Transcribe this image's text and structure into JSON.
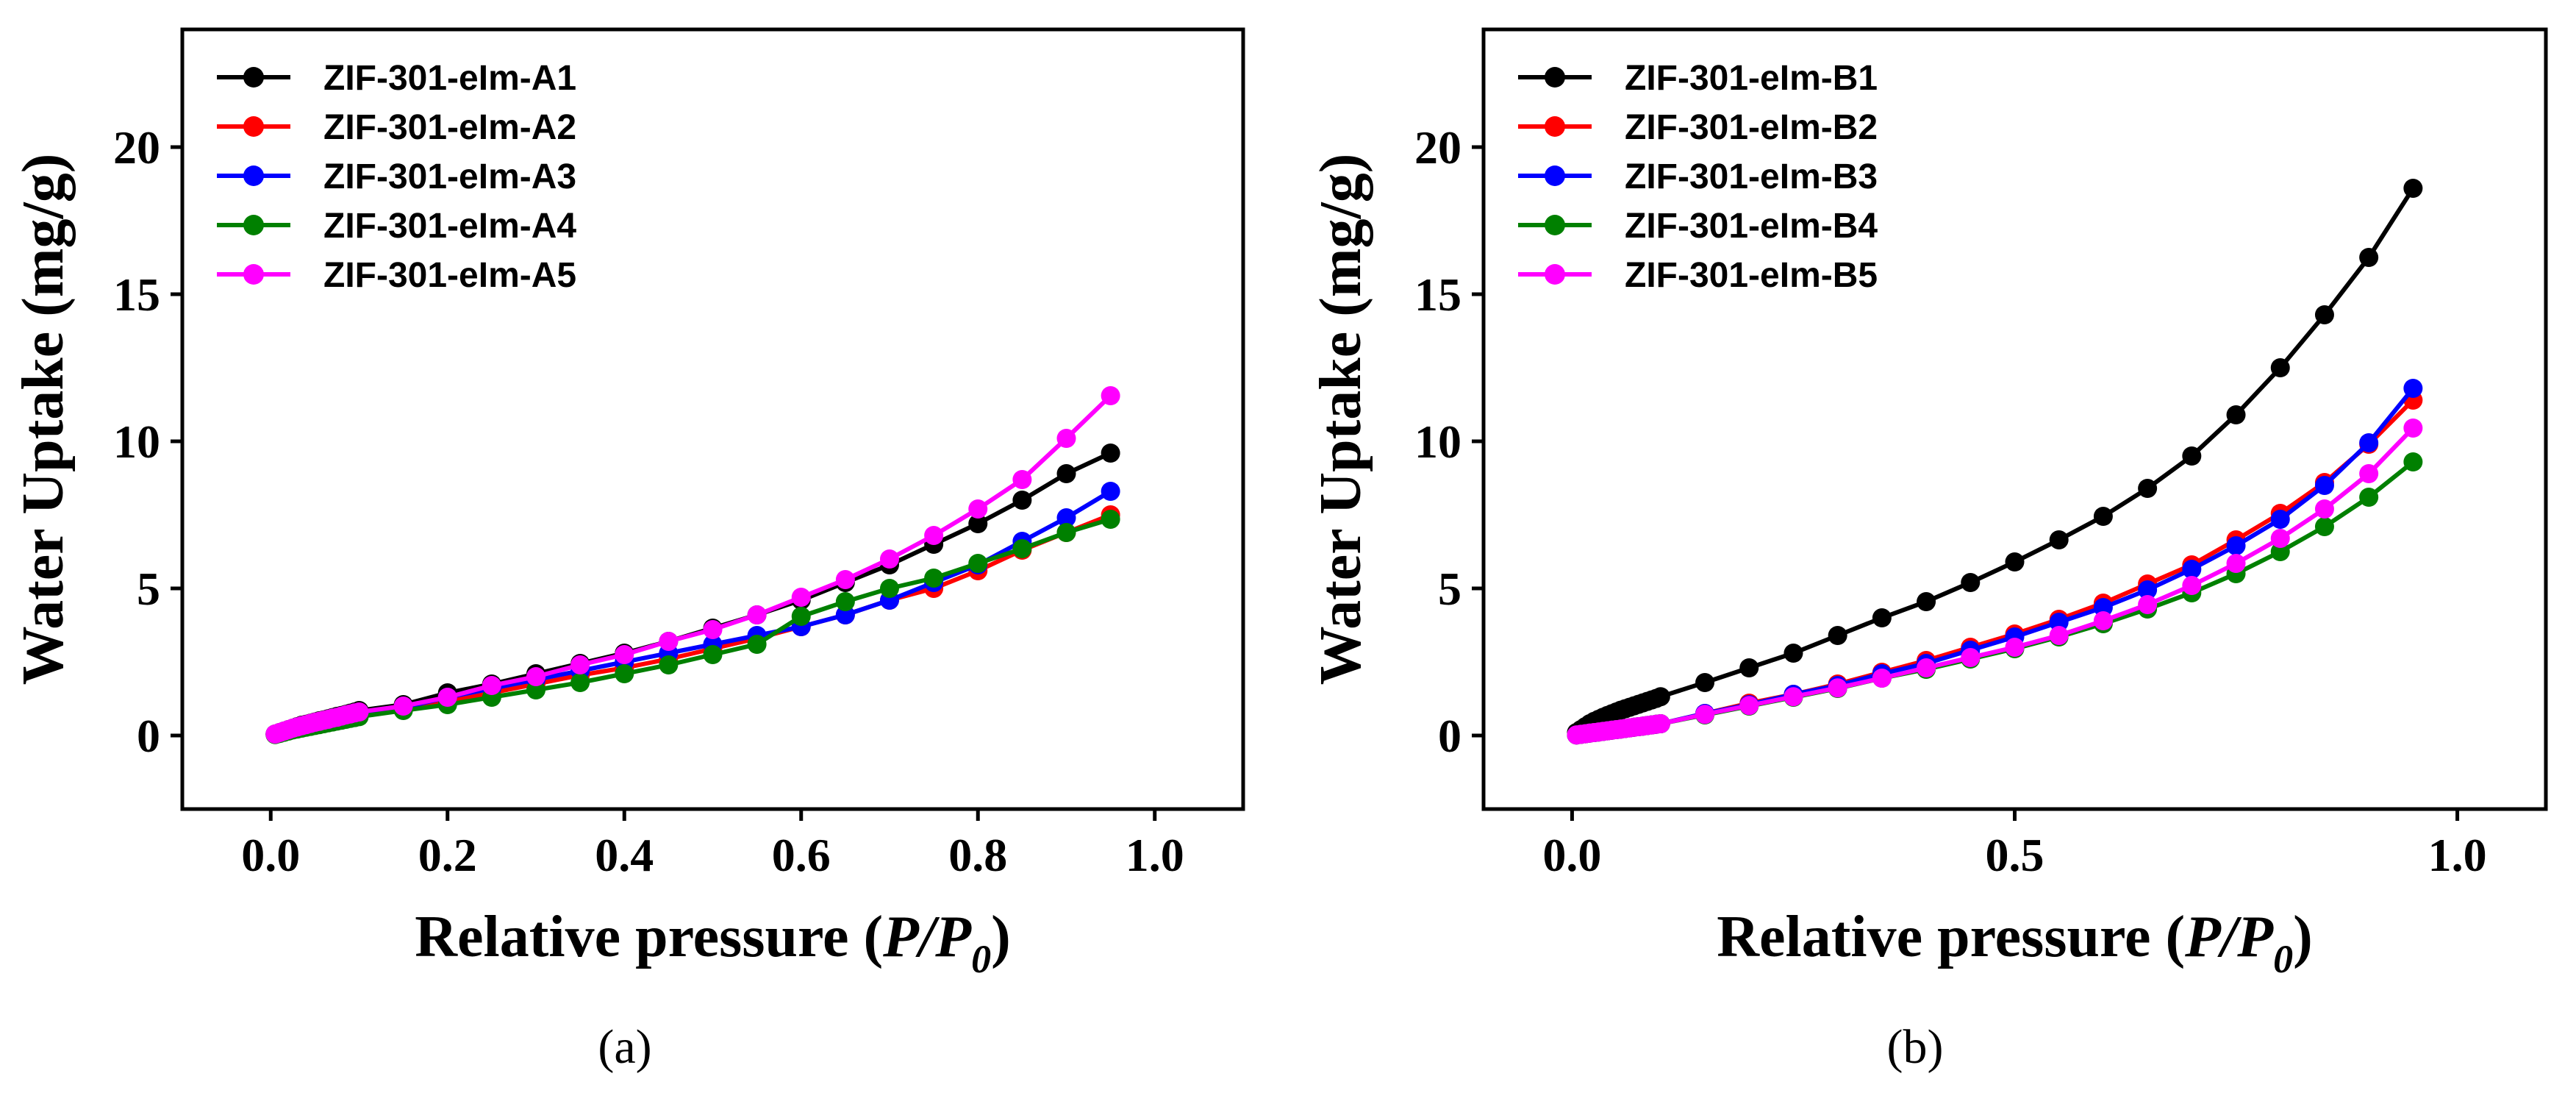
{
  "chart_data": [
    {
      "type": "line",
      "panel_label": "(a)",
      "xlabel": "Relative pressure (P/P0)",
      "xlabel_prefix": "Relative pressure (",
      "xlabel_var_p": "P/P",
      "xlabel_var_sub": "0",
      "xlabel_suffix": ")",
      "ylabel": "Water Uptake (mg/g)",
      "xlim": [
        -0.1,
        1.1
      ],
      "ylim": [
        -2.5,
        24
      ],
      "xticks": [
        "0.0",
        "0.2",
        "0.4",
        "0.6",
        "0.8",
        "1.0"
      ],
      "yticks": [
        "0",
        "5",
        "10",
        "15",
        "20"
      ],
      "x": [
        0.005,
        0.01,
        0.015,
        0.02,
        0.025,
        0.03,
        0.035,
        0.04,
        0.045,
        0.05,
        0.055,
        0.06,
        0.065,
        0.07,
        0.075,
        0.08,
        0.085,
        0.09,
        0.095,
        0.1,
        0.15,
        0.2,
        0.25,
        0.3,
        0.35,
        0.4,
        0.45,
        0.5,
        0.55,
        0.6,
        0.65,
        0.7,
        0.75,
        0.8,
        0.85,
        0.9,
        0.95
      ],
      "series": [
        {
          "name": "ZIF-301-eIm-A1",
          "color": "#000000",
          "values": [
            0.05,
            0.1,
            0.15,
            0.2,
            0.25,
            0.3,
            0.35,
            0.38,
            0.42,
            0.46,
            0.5,
            0.53,
            0.57,
            0.61,
            0.65,
            0.68,
            0.72,
            0.76,
            0.8,
            0.85,
            1.05,
            1.45,
            1.75,
            2.1,
            2.45,
            2.8,
            3.2,
            3.65,
            4.1,
            4.6,
            5.2,
            5.8,
            6.5,
            7.2,
            8.0,
            8.9,
            9.6
          ]
        },
        {
          "name": "ZIF-301-eIm-A2",
          "color": "#ff0000",
          "values": [
            0.04,
            0.08,
            0.12,
            0.16,
            0.2,
            0.24,
            0.28,
            0.31,
            0.34,
            0.37,
            0.4,
            0.43,
            0.46,
            0.49,
            0.52,
            0.55,
            0.58,
            0.61,
            0.64,
            0.68,
            0.9,
            1.15,
            1.45,
            1.75,
            2.05,
            2.3,
            2.6,
            2.95,
            3.3,
            3.7,
            4.1,
            4.6,
            5.0,
            5.6,
            6.3,
            6.9,
            7.5
          ]
        },
        {
          "name": "ZIF-301-eIm-A3",
          "color": "#0000ff",
          "values": [
            0.04,
            0.08,
            0.12,
            0.16,
            0.2,
            0.24,
            0.28,
            0.31,
            0.34,
            0.37,
            0.4,
            0.43,
            0.46,
            0.49,
            0.52,
            0.55,
            0.58,
            0.61,
            0.64,
            0.68,
            0.95,
            1.3,
            1.6,
            1.9,
            2.2,
            2.5,
            2.8,
            3.1,
            3.4,
            3.7,
            4.1,
            4.6,
            5.2,
            5.8,
            6.6,
            7.4,
            8.3
          ]
        },
        {
          "name": "ZIF-301-eIm-A4",
          "color": "#008000",
          "values": [
            0.03,
            0.07,
            0.11,
            0.15,
            0.19,
            0.22,
            0.25,
            0.28,
            0.31,
            0.34,
            0.37,
            0.4,
            0.43,
            0.46,
            0.49,
            0.52,
            0.55,
            0.58,
            0.61,
            0.64,
            0.85,
            1.05,
            1.3,
            1.55,
            1.8,
            2.1,
            2.4,
            2.75,
            3.1,
            4.05,
            4.55,
            5.0,
            5.35,
            5.85,
            6.35,
            6.9,
            7.35
          ]
        },
        {
          "name": "ZIF-301-eIm-A5",
          "color": "#ff00ff",
          "values": [
            0.05,
            0.1,
            0.15,
            0.2,
            0.25,
            0.29,
            0.33,
            0.37,
            0.41,
            0.45,
            0.48,
            0.52,
            0.55,
            0.59,
            0.62,
            0.66,
            0.7,
            0.73,
            0.77,
            0.8,
            1.0,
            1.3,
            1.7,
            2.0,
            2.4,
            2.75,
            3.2,
            3.6,
            4.1,
            4.7,
            5.3,
            6.0,
            6.8,
            7.7,
            8.7,
            10.1,
            11.55
          ]
        }
      ]
    },
    {
      "type": "line",
      "panel_label": "(b)",
      "xlabel": "Relative pressure (P/P0)",
      "xlabel_prefix": "Relative pressure (",
      "xlabel_var_p": "P/P",
      "xlabel_var_sub": "0",
      "xlabel_suffix": ")",
      "ylabel": "Water Uptake (mg/g)",
      "xlim": [
        -0.1,
        1.1
      ],
      "ylim": [
        -2.5,
        24
      ],
      "xticks": [
        "0.0",
        "0.5",
        "1.0"
      ],
      "yticks": [
        "0",
        "5",
        "10",
        "15",
        "20"
      ],
      "x": [
        0.005,
        0.01,
        0.015,
        0.02,
        0.025,
        0.03,
        0.035,
        0.04,
        0.045,
        0.05,
        0.055,
        0.06,
        0.065,
        0.07,
        0.075,
        0.08,
        0.085,
        0.09,
        0.095,
        0.1,
        0.15,
        0.2,
        0.25,
        0.3,
        0.35,
        0.4,
        0.45,
        0.5,
        0.55,
        0.6,
        0.65,
        0.7,
        0.75,
        0.8,
        0.85,
        0.9,
        0.95
      ],
      "series": [
        {
          "name": "ZIF-301-eIm-B1",
          "color": "#000000",
          "values": [
            0.1,
            0.2,
            0.3,
            0.4,
            0.48,
            0.55,
            0.62,
            0.68,
            0.74,
            0.8,
            0.86,
            0.91,
            0.96,
            1.01,
            1.06,
            1.11,
            1.16,
            1.21,
            1.26,
            1.32,
            1.8,
            2.3,
            2.8,
            3.4,
            4.0,
            4.55,
            5.2,
            5.9,
            6.65,
            7.45,
            8.4,
            9.5,
            10.9,
            12.5,
            14.3,
            16.25,
            18.6
          ]
        },
        {
          "name": "ZIF-301-eIm-B2",
          "color": "#ff0000",
          "values": [
            0.02,
            0.04,
            0.06,
            0.08,
            0.1,
            0.12,
            0.14,
            0.16,
            0.18,
            0.2,
            0.22,
            0.24,
            0.26,
            0.28,
            0.3,
            0.32,
            0.34,
            0.36,
            0.38,
            0.4,
            0.75,
            1.1,
            1.4,
            1.75,
            2.15,
            2.55,
            3.0,
            3.45,
            3.95,
            4.5,
            5.15,
            5.8,
            6.65,
            7.55,
            8.6,
            9.9,
            11.4
          ]
        },
        {
          "name": "ZIF-301-eIm-B3",
          "color": "#0000ff",
          "values": [
            0.02,
            0.04,
            0.06,
            0.08,
            0.1,
            0.12,
            0.14,
            0.16,
            0.18,
            0.2,
            0.22,
            0.24,
            0.26,
            0.28,
            0.3,
            0.32,
            0.34,
            0.36,
            0.38,
            0.4,
            0.75,
            1.05,
            1.4,
            1.7,
            2.1,
            2.45,
            2.9,
            3.35,
            3.85,
            4.35,
            4.95,
            5.65,
            6.45,
            7.35,
            8.5,
            9.95,
            11.8
          ]
        },
        {
          "name": "ZIF-301-eIm-B4",
          "color": "#008000",
          "values": [
            0.02,
            0.04,
            0.06,
            0.08,
            0.1,
            0.12,
            0.14,
            0.16,
            0.18,
            0.2,
            0.22,
            0.24,
            0.26,
            0.28,
            0.3,
            0.32,
            0.34,
            0.36,
            0.38,
            0.4,
            0.7,
            1.0,
            1.3,
            1.6,
            1.95,
            2.25,
            2.6,
            2.95,
            3.35,
            3.8,
            4.3,
            4.85,
            5.5,
            6.25,
            7.1,
            8.1,
            9.3
          ]
        },
        {
          "name": "ZIF-301-eIm-B5",
          "color": "#ff00ff",
          "values": [
            0.02,
            0.04,
            0.06,
            0.08,
            0.1,
            0.12,
            0.14,
            0.16,
            0.18,
            0.2,
            0.22,
            0.24,
            0.26,
            0.28,
            0.3,
            0.32,
            0.34,
            0.36,
            0.38,
            0.4,
            0.72,
            1.02,
            1.32,
            1.62,
            1.95,
            2.3,
            2.65,
            3.0,
            3.4,
            3.9,
            4.45,
            5.1,
            5.85,
            6.7,
            7.7,
            8.9,
            10.45
          ]
        }
      ]
    }
  ]
}
